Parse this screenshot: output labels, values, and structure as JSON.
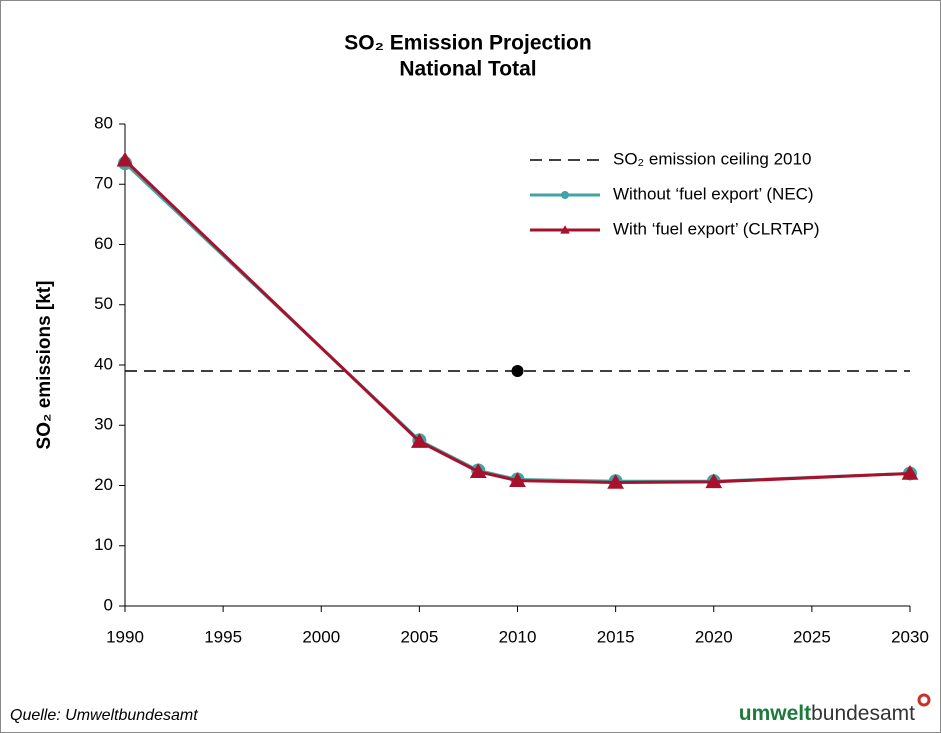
{
  "chart_data": {
    "type": "line",
    "title": "SO₂ Emission Projection",
    "subtitle": "National Total",
    "y_label": "SO₂ emissions [kt]",
    "x": [
      1990,
      2005,
      2008,
      2010,
      2015,
      2020,
      2030
    ],
    "series": [
      {
        "name": "Without ‘fuel export’ (NEC)",
        "color": "#41a3a3",
        "marker": "circle",
        "values": [
          73.5,
          27.5,
          22.5,
          21,
          20.7,
          20.7,
          22
        ]
      },
      {
        "name": "With ‘fuel export’ (CLRTAP)",
        "color": "#a8112b",
        "marker": "triangle",
        "values": [
          74,
          27.3,
          22.3,
          20.8,
          20.5,
          20.6,
          22
        ]
      }
    ],
    "ceiling": {
      "name": "SO₂ emission ceiling 2010",
      "x": 2010,
      "value": 39,
      "color": "#000000"
    },
    "xlim": [
      1990,
      2030
    ],
    "xticks": [
      1990,
      1995,
      2000,
      2005,
      2010,
      2015,
      2020,
      2025,
      2030
    ],
    "ylim": [
      0,
      80
    ],
    "yticks": [
      0,
      10,
      20,
      30,
      40,
      50,
      60,
      70,
      80
    ],
    "legend": "upper right",
    "source": "Quelle: Umweltbundesamt",
    "logo": {
      "bold": "umwelt",
      "regular": "bundesamt"
    }
  }
}
